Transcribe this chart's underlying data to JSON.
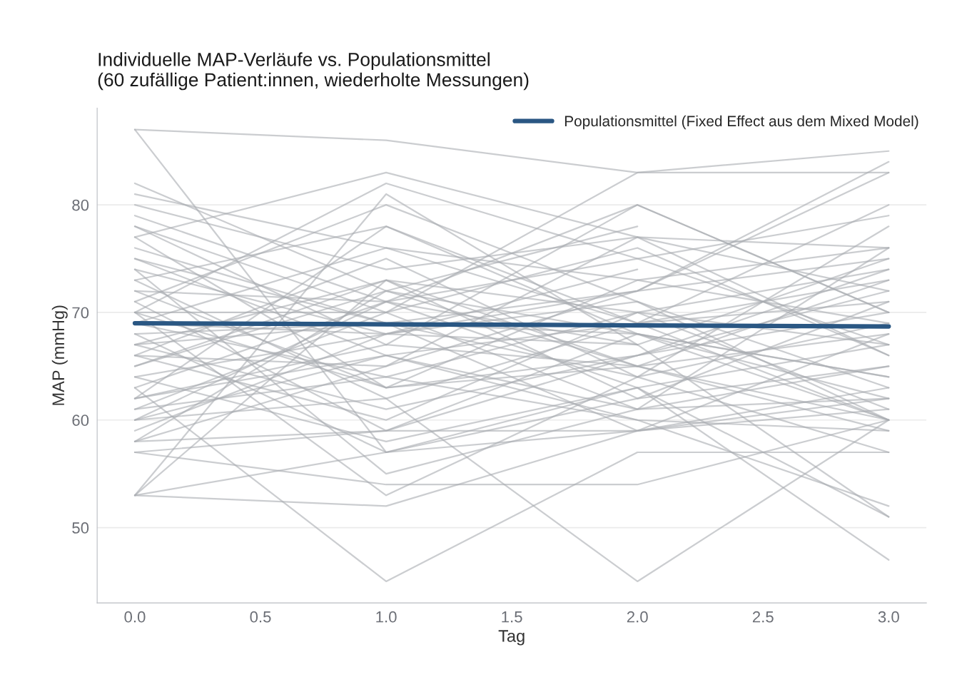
{
  "chart_data": {
    "type": "line",
    "title": "Individuelle MAP-Verläufe vs. Populationsmittel\n(60 zufällige Patient:innen, wiederholte Messungen)",
    "xlabel": "Tag",
    "ylabel": "MAP (mmHg)",
    "x": [
      0,
      1,
      2,
      3
    ],
    "xlim": [
      -0.15,
      3.15
    ],
    "xticks": [
      {
        "value": 0,
        "label": "0.0"
      },
      {
        "value": 0.5,
        "label": "0.5"
      },
      {
        "value": 1,
        "label": "1.0"
      },
      {
        "value": 1.5,
        "label": "1.5"
      },
      {
        "value": 2,
        "label": "2.0"
      },
      {
        "value": 2.5,
        "label": "2.5"
      },
      {
        "value": 3,
        "label": "3.0"
      }
    ],
    "ylim": [
      43,
      89
    ],
    "yticks": [
      50,
      60,
      70,
      80
    ],
    "grid": "y",
    "legend": "top right",
    "series": [
      {
        "color": "#a9abb0",
        "values": [
          87,
          86,
          83,
          85
        ]
      },
      {
        "color": "#a9abb0",
        "values": [
          87,
          57,
          59,
          62
        ]
      },
      {
        "color": "#a9abb0",
        "values": [
          82,
          72,
          65,
          60
        ]
      },
      {
        "color": "#a9abb0",
        "values": [
          81,
          76,
          69,
          73
        ]
      },
      {
        "color": "#a9abb0",
        "values": [
          80,
          74,
          77,
          76
        ]
      },
      {
        "color": "#a9abb0",
        "values": [
          79,
          71,
          63,
          51
        ]
      },
      {
        "color": "#a9abb0",
        "values": [
          78,
          67,
          80,
          70
        ]
      },
      {
        "color": "#a9abb0",
        "values": [
          78,
          70,
          61,
          62
        ]
      },
      {
        "color": "#a9abb0",
        "values": [
          77,
          83,
          77,
          66
        ]
      },
      {
        "color": "#a9abb0",
        "values": [
          77,
          63,
          73,
          76
        ]
      },
      {
        "color": "#a9abb0",
        "values": [
          76,
          69,
          72,
          83
        ]
      },
      {
        "color": "#a9abb0",
        "values": [
          75,
          66,
          60,
          59
        ]
      },
      {
        "color": "#a9abb0",
        "values": [
          74,
          68,
          67,
          75
        ]
      },
      {
        "color": "#a9abb0",
        "values": [
          74,
          55,
          61,
          65
        ]
      },
      {
        "color": "#a9abb0",
        "values": [
          73,
          78,
          68,
          64
        ]
      },
      {
        "color": "#a9abb0",
        "values": [
          73,
          62,
          69,
          80
        ]
      },
      {
        "color": "#a9abb0",
        "values": [
          72,
          71,
          75,
          79
        ]
      },
      {
        "color": "#a9abb0",
        "values": [
          71,
          80,
          71,
          60
        ]
      },
      {
        "color": "#a9abb0",
        "values": [
          71,
          59,
          66,
          72
        ]
      },
      {
        "color": "#a9abb0",
        "values": [
          70,
          82,
          75,
          67
        ]
      },
      {
        "color": "#a9abb0",
        "values": [
          70,
          70,
          83,
          83
        ]
      },
      {
        "color": "#a9abb0",
        "values": [
          70,
          53,
          64,
          78
        ]
      },
      {
        "color": "#a9abb0",
        "values": [
          69,
          64,
          70,
          74
        ]
      },
      {
        "color": "#a9abb0",
        "values": [
          69,
          76,
          73,
          69
        ]
      },
      {
        "color": "#a9abb0",
        "values": [
          68,
          69,
          59,
          63
        ]
      },
      {
        "color": "#a9abb0",
        "values": [
          68,
          57,
          62,
          71
        ]
      },
      {
        "color": "#a9abb0",
        "values": [
          67,
          73,
          65,
          68
        ]
      },
      {
        "color": "#a9abb0",
        "values": [
          67,
          61,
          66,
          70
        ]
      },
      {
        "color": "#a9abb0",
        "values": [
          66,
          75,
          64,
          57
        ]
      },
      {
        "color": "#a9abb0",
        "values": [
          66,
          65,
          72,
          84
        ]
      },
      {
        "color": "#a9abb0",
        "values": [
          66,
          60,
          70,
          61
        ]
      },
      {
        "color": "#a9abb0",
        "values": [
          65,
          72,
          78,
          null
        ]
      },
      {
        "color": "#a9abb0",
        "values": [
          64,
          58,
          63,
          67
        ]
      },
      {
        "color": "#a9abb0",
        "values": [
          64,
          68,
          74,
          null
        ]
      },
      {
        "color": "#a9abb0",
        "values": [
          63,
          45,
          57,
          57
        ]
      },
      {
        "color": "#a9abb0",
        "values": [
          63,
          71,
          67,
          null
        ]
      },
      {
        "color": "#a9abb0",
        "values": [
          62,
          67,
          65,
          73
        ]
      },
      {
        "color": "#a9abb0",
        "values": [
          62,
          78,
          69,
          60
        ]
      },
      {
        "color": "#a9abb0",
        "values": [
          61,
          70,
          76,
          66
        ]
      },
      {
        "color": "#a9abb0",
        "values": [
          61,
          64,
          60,
          52
        ]
      },
      {
        "color": "#a9abb0",
        "values": [
          60,
          71,
          80,
          70
        ]
      },
      {
        "color": "#a9abb0",
        "values": [
          60,
          66,
          61,
          76
        ]
      },
      {
        "color": "#a9abb0",
        "values": [
          60,
          62,
          45,
          60
        ]
      },
      {
        "color": "#a9abb0",
        "values": [
          59,
          68,
          71,
          63
        ]
      },
      {
        "color": "#a9abb0",
        "values": [
          58,
          72,
          68,
          64
        ]
      },
      {
        "color": "#a9abb0",
        "values": [
          58,
          59,
          68,
          62
        ]
      },
      {
        "color": "#a9abb0",
        "values": [
          58,
          65,
          77,
          72
        ]
      },
      {
        "color": "#a9abb0",
        "values": [
          57,
          59,
          59,
          68
        ]
      },
      {
        "color": "#a9abb0",
        "values": [
          57,
          54,
          54,
          60
        ]
      },
      {
        "color": "#a9abb0",
        "values": [
          53,
          81,
          67,
          51
        ]
      },
      {
        "color": "#a9abb0",
        "values": [
          53,
          73,
          62,
          65
        ]
      },
      {
        "color": "#a9abb0",
        "values": [
          53,
          52,
          59,
          61
        ]
      },
      {
        "color": "#a9abb0",
        "values": [
          53,
          57,
          63,
          47
        ]
      },
      {
        "color": "#a9abb0",
        "values": [
          72,
          63,
          66,
          74
        ]
      },
      {
        "color": "#a9abb0",
        "values": [
          75,
          69,
          64,
          69
        ]
      },
      {
        "color": "#a9abb0",
        "values": [
          69,
          68,
          72,
          75
        ]
      },
      {
        "color": "#a9abb0",
        "values": [
          65,
          73,
          70,
          67
        ]
      },
      {
        "color": "#a9abb0",
        "values": [
          62,
          66,
          69,
          71
        ]
      },
      {
        "color": "#a9abb0",
        "values": [
          70,
          63,
          65,
          59
        ]
      },
      {
        "color": "#a9abb0",
        "values": [
          67,
          69,
          68,
          60
        ]
      },
      {
        "name": "Populationsmittel (Fixed Effect aus dem Mixed Model)",
        "color": "#2a5783",
        "values": [
          69.0,
          68.9,
          68.8,
          68.7
        ]
      }
    ]
  }
}
